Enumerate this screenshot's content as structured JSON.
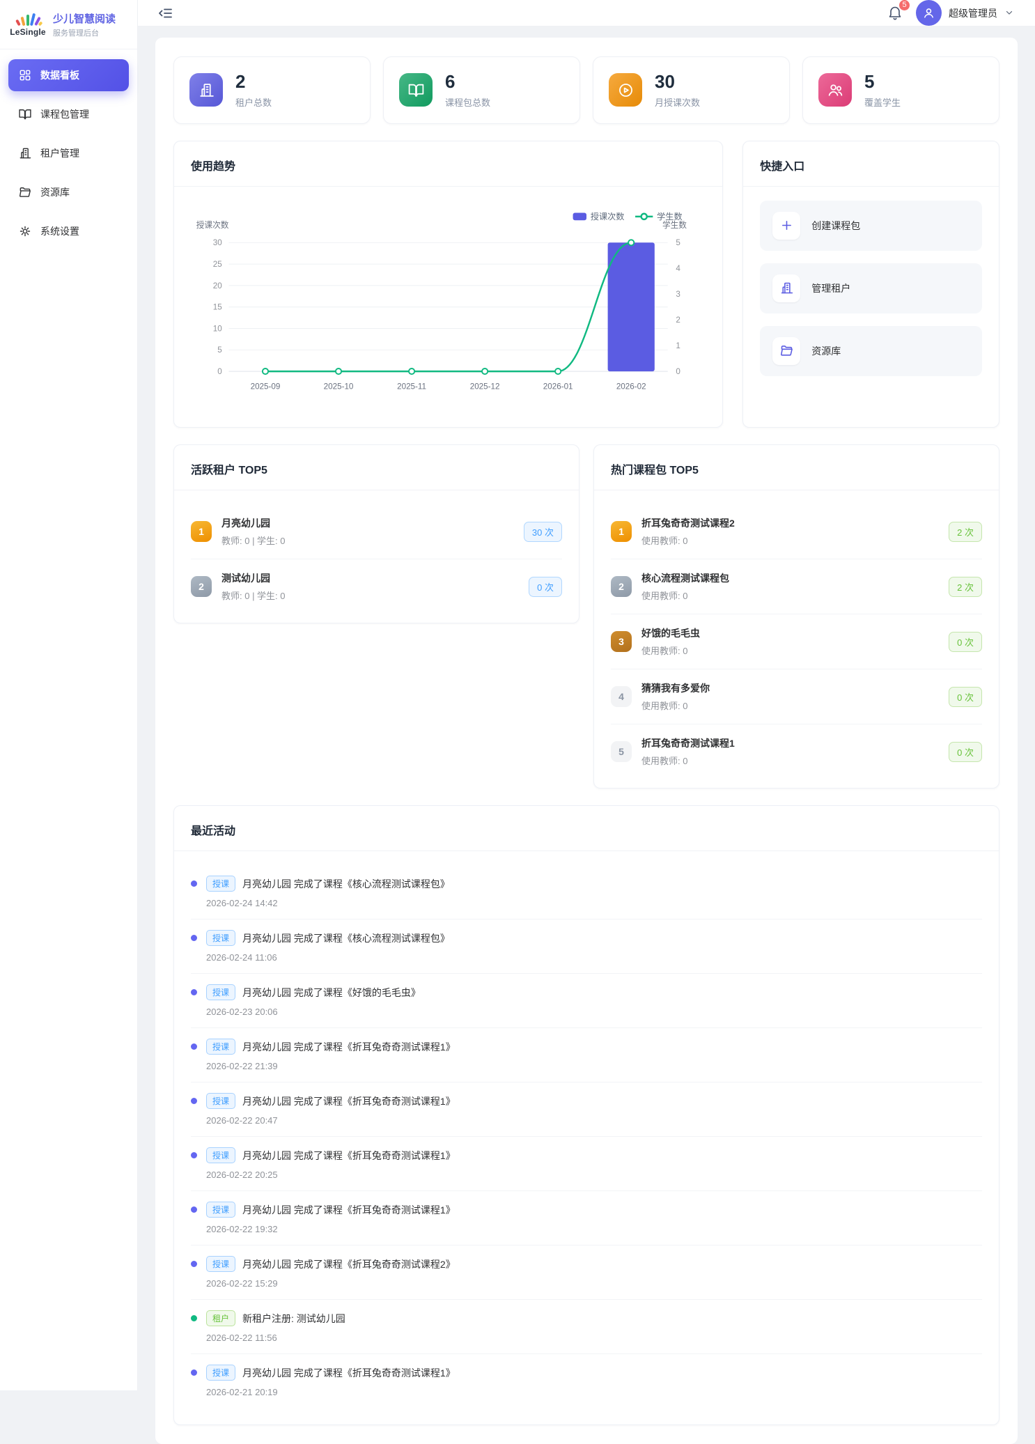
{
  "brand": {
    "logo_text": "LeSingle",
    "title": "少儿智慧阅读",
    "subtitle": "服务管理后台"
  },
  "sidebar": {
    "items": [
      {
        "label": "数据看板",
        "icon": "dashboard-icon",
        "active": true
      },
      {
        "label": "课程包管理",
        "icon": "book-icon",
        "active": false
      },
      {
        "label": "租户管理",
        "icon": "building-icon",
        "active": false
      },
      {
        "label": "资源库",
        "icon": "folder-icon",
        "active": false
      },
      {
        "label": "系统设置",
        "icon": "gear-icon",
        "active": false
      }
    ]
  },
  "header": {
    "notification_count": "5",
    "username": "超级管理员"
  },
  "theme": {
    "accent_purple": "#5b5ce2",
    "primary_blue": "#409eff",
    "success_green": "#67c23a",
    "line_green": "#10b981",
    "danger_red": "#f56c6c"
  },
  "stats": [
    {
      "value": "2",
      "label": "租户总数",
      "icon": "building-icon",
      "color": "#5b5ce2"
    },
    {
      "value": "6",
      "label": "课程包总数",
      "icon": "book-icon",
      "color": "#12a364"
    },
    {
      "value": "30",
      "label": "月授课次数",
      "icon": "play-icon",
      "color": "#f39208"
    },
    {
      "value": "5",
      "label": "覆盖学生",
      "icon": "students-icon",
      "color": "#e73f7c"
    }
  ],
  "chart_panel": {
    "title": "使用趋势"
  },
  "chart_data": {
    "type": "bar+line",
    "title": "使用趋势",
    "categories": [
      "2025-09",
      "2025-10",
      "2025-11",
      "2025-12",
      "2026-01",
      "2026-02"
    ],
    "series": [
      {
        "name": "授课次数",
        "type": "bar",
        "axis": "left",
        "color": "#5b5ce2",
        "values": [
          0,
          0,
          0,
          0,
          0,
          30
        ]
      },
      {
        "name": "学生数",
        "type": "line",
        "axis": "right",
        "color": "#10b981",
        "values": [
          0,
          0,
          0,
          0,
          0,
          5
        ]
      }
    ],
    "left_axis": {
      "label": "授课次数",
      "min": 0,
      "max": 30,
      "ticks": [
        0,
        5,
        10,
        15,
        20,
        25,
        30
      ]
    },
    "right_axis": {
      "label": "学生数",
      "min": 0,
      "max": 5,
      "ticks": [
        0,
        1,
        2,
        3,
        4,
        5
      ]
    },
    "legend": [
      "授课次数",
      "学生数"
    ],
    "legend_position": "top-right",
    "grid": true
  },
  "quick_panel": {
    "title": "快捷入口",
    "items": [
      {
        "label": "创建课程包",
        "icon": "plus-icon"
      },
      {
        "label": "管理租户",
        "icon": "building-icon"
      },
      {
        "label": "资源库",
        "icon": "folder-icon"
      }
    ]
  },
  "active_tenants": {
    "title": "活跃租户 TOP5",
    "items": [
      {
        "rank": "1",
        "name": "月亮幼儿园",
        "meta": "教师: 0 | 学生: 0",
        "count": "30 次"
      },
      {
        "rank": "2",
        "name": "测试幼儿园",
        "meta": "教师: 0 | 学生: 0",
        "count": "0 次"
      }
    ]
  },
  "hot_packages": {
    "title": "热门课程包 TOP5",
    "items": [
      {
        "rank": "1",
        "name": "折耳兔奇奇测试课程2",
        "meta": "使用教师: 0",
        "count": "2 次"
      },
      {
        "rank": "2",
        "name": "核心流程测试课程包",
        "meta": "使用教师: 0",
        "count": "2 次"
      },
      {
        "rank": "3",
        "name": "好饿的毛毛虫",
        "meta": "使用教师: 0",
        "count": "0 次"
      },
      {
        "rank": "4",
        "name": "猜猜我有多爱你",
        "meta": "使用教师: 0",
        "count": "0 次"
      },
      {
        "rank": "5",
        "name": "折耳兔奇奇测试课程1",
        "meta": "使用教师: 0",
        "count": "0 次"
      }
    ]
  },
  "activities": {
    "title": "最近活动",
    "items": [
      {
        "type": "授课",
        "text": "月亮幼儿园 完成了课程《核心流程测试课程包》",
        "time": "2026-02-24 14:42"
      },
      {
        "type": "授课",
        "text": "月亮幼儿园 完成了课程《核心流程测试课程包》",
        "time": "2026-02-24 11:06"
      },
      {
        "type": "授课",
        "text": "月亮幼儿园 完成了课程《好饿的毛毛虫》",
        "time": "2026-02-23 20:06"
      },
      {
        "type": "授课",
        "text": "月亮幼儿园 完成了课程《折耳兔奇奇测试课程1》",
        "time": "2026-02-22 21:39"
      },
      {
        "type": "授课",
        "text": "月亮幼儿园 完成了课程《折耳兔奇奇测试课程1》",
        "time": "2026-02-22 20:47"
      },
      {
        "type": "授课",
        "text": "月亮幼儿园 完成了课程《折耳兔奇奇测试课程1》",
        "time": "2026-02-22 20:25"
      },
      {
        "type": "授课",
        "text": "月亮幼儿园 完成了课程《折耳兔奇奇测试课程1》",
        "time": "2026-02-22 19:32"
      },
      {
        "type": "授课",
        "text": "月亮幼儿园 完成了课程《折耳兔奇奇测试课程2》",
        "time": "2026-02-22 15:29"
      },
      {
        "type": "租户",
        "text": "新租户注册: 测试幼儿园",
        "time": "2026-02-22 11:56"
      },
      {
        "type": "授课",
        "text": "月亮幼儿园 完成了课程《折耳兔奇奇测试课程1》",
        "time": "2026-02-21 20:19"
      }
    ]
  }
}
